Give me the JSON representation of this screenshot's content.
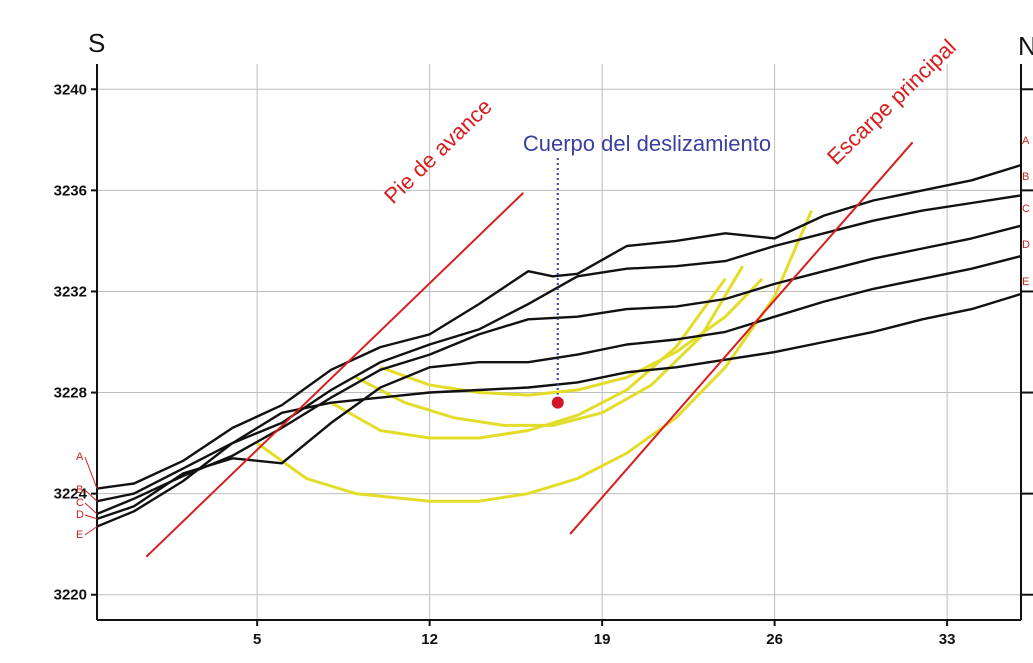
{
  "colors": {
    "profile": "#111111",
    "slip_surface": "#e3dd2a",
    "scarp_line": "#d71f1f",
    "annotation_blue": "#3b3f9e",
    "point": "#d0152b",
    "grid": "#bdbdbd"
  },
  "chart_data": {
    "type": "line",
    "title": "",
    "xlabel": "",
    "ylabel": "",
    "xlim": [
      -1.5,
      36
    ],
    "ylim": [
      3219,
      3241
    ],
    "grid": true,
    "x_ticks": [
      5,
      12,
      19,
      26,
      33
    ],
    "y_ticks": [
      3220,
      3224,
      3228,
      3232,
      3236,
      3240
    ],
    "x_tick_labels": [
      "5",
      "12",
      "19",
      "26",
      "33"
    ],
    "y_tick_labels": [
      "3220",
      "3224",
      "3228",
      "3232",
      "3236",
      "3240"
    ],
    "left_end_label": "S",
    "right_end_label": "N",
    "series": [
      {
        "name": "A",
        "x": [
          -1.5,
          0,
          2,
          4,
          6,
          8,
          10,
          12,
          14,
          16,
          17,
          18,
          20,
          22,
          24,
          26,
          28,
          30,
          32,
          34,
          36
        ],
        "y": [
          3224.2,
          3224.4,
          3225.3,
          3226.6,
          3227.5,
          3228.9,
          3229.8,
          3230.3,
          3231.5,
          3232.8,
          3232.6,
          3232.7,
          3233.8,
          3234.0,
          3234.3,
          3234.1,
          3235.0,
          3235.6,
          3236.0,
          3236.4,
          3237.0
        ]
      },
      {
        "name": "B",
        "x": [
          -1.5,
          0,
          2,
          4,
          6,
          8,
          10,
          12,
          14,
          16,
          18,
          20,
          22,
          24,
          26,
          28,
          30,
          32,
          34,
          36
        ],
        "y": [
          3223.7,
          3224.0,
          3225.0,
          3226.0,
          3226.8,
          3228.1,
          3229.2,
          3229.9,
          3230.5,
          3231.5,
          3232.6,
          3232.9,
          3233.0,
          3233.2,
          3233.8,
          3234.3,
          3234.8,
          3235.2,
          3235.5,
          3235.8
        ]
      },
      {
        "name": "C",
        "x": [
          -1.5,
          0,
          2,
          4,
          6,
          8,
          10,
          12,
          14,
          16,
          18,
          20,
          22,
          24,
          26,
          28,
          30,
          32,
          34,
          36
        ],
        "y": [
          3223.2,
          3223.8,
          3224.7,
          3225.5,
          3226.6,
          3227.8,
          3228.9,
          3229.5,
          3230.3,
          3230.9,
          3231.0,
          3231.3,
          3231.4,
          3231.7,
          3232.3,
          3232.8,
          3233.3,
          3233.7,
          3234.1,
          3234.6
        ]
      },
      {
        "name": "D",
        "x": [
          -1.5,
          0,
          2,
          4,
          6,
          8,
          10,
          12,
          14,
          16,
          18,
          20,
          22,
          24,
          26,
          28,
          30,
          32,
          34,
          36
        ],
        "y": [
          3223.0,
          3223.5,
          3224.8,
          3225.4,
          3225.2,
          3226.8,
          3228.2,
          3229.0,
          3229.2,
          3229.2,
          3229.5,
          3229.9,
          3230.1,
          3230.4,
          3231.0,
          3231.6,
          3232.1,
          3232.5,
          3232.9,
          3233.4
        ]
      },
      {
        "name": "E",
        "x": [
          -1.5,
          0,
          2,
          4,
          6,
          8,
          10,
          12,
          14,
          16,
          18,
          20,
          22,
          24,
          26,
          28,
          30,
          32,
          34,
          36
        ],
        "y": [
          3222.7,
          3223.3,
          3224.5,
          3226.0,
          3227.2,
          3227.6,
          3227.8,
          3228.0,
          3228.1,
          3228.2,
          3228.4,
          3228.8,
          3229.0,
          3229.3,
          3229.6,
          3230.0,
          3230.4,
          3230.9,
          3231.3,
          3231.9
        ]
      }
    ],
    "slip_surfaces": [
      {
        "x": [
          5,
          7,
          9,
          12,
          14,
          16,
          18,
          20,
          22,
          24,
          26,
          27.5
        ],
        "y": [
          3226.0,
          3224.6,
          3224.0,
          3223.7,
          3223.7,
          3224.0,
          3224.6,
          3225.6,
          3227.0,
          3229.0,
          3231.8,
          3235.2
        ]
      },
      {
        "x": [
          8,
          10,
          12,
          14,
          16,
          18,
          20,
          22,
          24
        ],
        "y": [
          3227.6,
          3226.5,
          3226.2,
          3226.2,
          3226.5,
          3227.1,
          3228.1,
          3229.8,
          3232.5
        ]
      },
      {
        "x": [
          9,
          11,
          13,
          15,
          17,
          19,
          21,
          23,
          24.7
        ],
        "y": [
          3228.6,
          3227.6,
          3227.0,
          3226.7,
          3226.7,
          3227.2,
          3228.3,
          3230.2,
          3233.0
        ]
      },
      {
        "x": [
          10,
          12,
          14,
          16,
          18,
          20,
          22,
          24,
          25.5
        ],
        "y": [
          3229.0,
          3228.3,
          3228.0,
          3227.9,
          3228.1,
          3228.6,
          3229.6,
          3231.0,
          3232.5
        ]
      }
    ],
    "reference_lines": [
      {
        "label": "Pie de avance",
        "x": [
          0.5,
          15.8
        ],
        "y": [
          3221.5,
          3235.9
        ]
      },
      {
        "label": "Escarpe principal",
        "x": [
          17.7,
          31.6
        ],
        "y": [
          3222.4,
          3237.9
        ]
      }
    ],
    "point": {
      "label": "Cuerpo del deslizamiento",
      "x": 17.2,
      "y": 3227.6
    },
    "profile_labels": [
      "A",
      "B",
      "C",
      "D",
      "E"
    ]
  }
}
